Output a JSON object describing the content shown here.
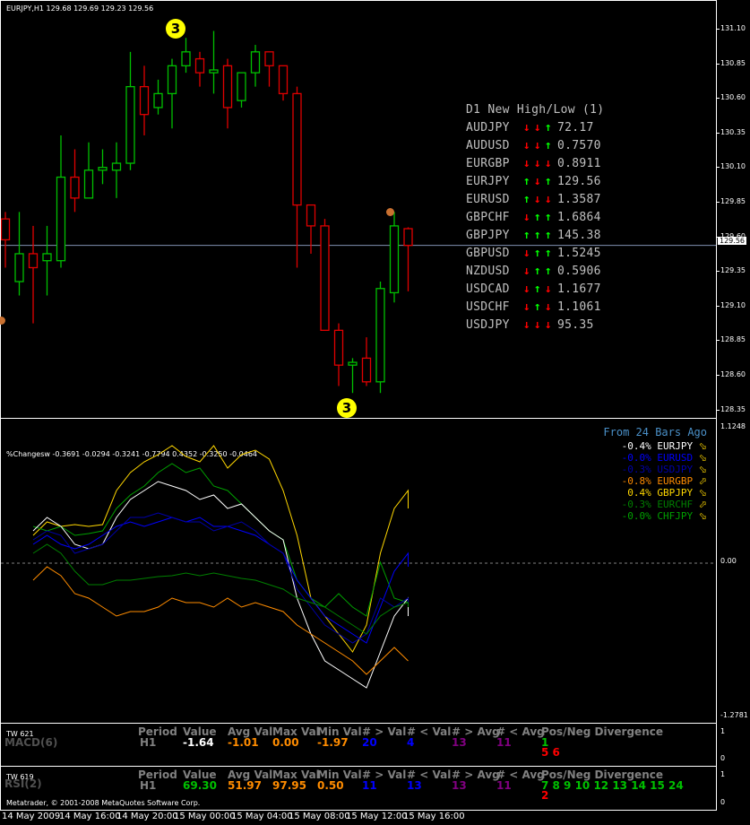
{
  "main": {
    "title": "EURJPY,H1  129.68 129.69 129.23 129.56",
    "price_axis": [
      "131.10",
      "130.85",
      "130.60",
      "130.35",
      "130.10",
      "129.85",
      "129.60",
      "129.35",
      "129.10",
      "128.85",
      "128.60",
      "128.35"
    ],
    "current_price": "129.56",
    "badge_top": "3",
    "badge_bottom": "3",
    "table": {
      "title": "D1 New High/Low (1)",
      "rows": [
        {
          "symbol": "AUDJPY",
          "a1": "↓",
          "a2": "↓",
          "a3": "↑",
          "c1": "#ff0000",
          "c2": "#ff0000",
          "c3": "#00ff00",
          "value": "72.17"
        },
        {
          "symbol": "AUDUSD",
          "a1": "↓",
          "a2": "↓",
          "a3": "↑",
          "c1": "#ff0000",
          "c2": "#ff0000",
          "c3": "#00ff00",
          "value": "0.7570"
        },
        {
          "symbol": "EURGBP",
          "a1": "↓",
          "a2": "↓",
          "a3": "↓",
          "c1": "#ff0000",
          "c2": "#ff0000",
          "c3": "#ff0000",
          "value": "0.8911"
        },
        {
          "symbol": "EURJPY",
          "a1": "↑",
          "a2": "↓",
          "a3": "↑",
          "c1": "#00ff00",
          "c2": "#ff0000",
          "c3": "#00ff00",
          "value": "129.56"
        },
        {
          "symbol": "EURUSD",
          "a1": "↑",
          "a2": "↓",
          "a3": "↓",
          "c1": "#00ff00",
          "c2": "#ff0000",
          "c3": "#ff0000",
          "value": "1.3587"
        },
        {
          "symbol": "GBPCHF",
          "a1": "↓",
          "a2": "↑",
          "a3": "↑",
          "c1": "#ff0000",
          "c2": "#00ff00",
          "c3": "#00ff00",
          "value": "1.6864"
        },
        {
          "symbol": "GBPJPY",
          "a1": "↑",
          "a2": "↑",
          "a3": "↑",
          "c1": "#00ff00",
          "c2": "#00ff00",
          "c3": "#00ff00",
          "value": "145.38"
        },
        {
          "symbol": "GBPUSD",
          "a1": "↓",
          "a2": "↑",
          "a3": "↑",
          "c1": "#ff0000",
          "c2": "#00ff00",
          "c3": "#00ff00",
          "value": "1.5245"
        },
        {
          "symbol": "NZDUSD",
          "a1": "↓",
          "a2": "↑",
          "a3": "↑",
          "c1": "#ff0000",
          "c2": "#00ff00",
          "c3": "#00ff00",
          "value": "0.5906"
        },
        {
          "symbol": "USDCAD",
          "a1": "↓",
          "a2": "↑",
          "a3": "↓",
          "c1": "#ff0000",
          "c2": "#00ff00",
          "c3": "#ff0000",
          "value": "1.1677"
        },
        {
          "symbol": "USDCHF",
          "a1": "↓",
          "a2": "↑",
          "a3": "↓",
          "c1": "#ff0000",
          "c2": "#00ff00",
          "c3": "#ff0000",
          "value": "1.1061"
        },
        {
          "symbol": "USDJPY",
          "a1": "↓",
          "a2": "↓",
          "a3": "↓",
          "c1": "#ff0000",
          "c2": "#ff0000",
          "c3": "#ff0000",
          "value": "95.35"
        }
      ]
    }
  },
  "changes": {
    "title": "%Changesw -0.3691 -0.0294 -0.3241 -0.7794 0.4352 -0.3250 -0.0464",
    "axis_top": "1.1248",
    "axis_zero": "0.00",
    "axis_bottom": "-1.2781",
    "legend_title": "From 24 Bars Ago",
    "legend": [
      {
        "value": "-0.4%",
        "symbol": "EURJPY",
        "arrow": "⬂",
        "color": "#ffffff"
      },
      {
        "value": "-0.0%",
        "symbol": "EURUSD",
        "arrow": "⬂",
        "color": "#0000ff"
      },
      {
        "value": "-0.3%",
        "symbol": "USDJPY",
        "arrow": "⬂",
        "color": "#0000aa"
      },
      {
        "value": "-0.8%",
        "symbol": "EURGBP",
        "arrow": "⬀",
        "color": "#ff8c00"
      },
      {
        "value": "0.4%",
        "symbol": "GBPJPY",
        "arrow": "⬂",
        "color": "#ffd700"
      },
      {
        "value": "-0.3%",
        "symbol": "EURCHF",
        "arrow": "⬀",
        "color": "#008000"
      },
      {
        "value": "-0.0%",
        "symbol": "CHFJPY",
        "arrow": "⬂",
        "color": "#00a000"
      }
    ]
  },
  "macd": {
    "tag": "TW 621",
    "name": "MACD(6)",
    "headers": [
      "Period",
      "Value",
      "Avg Val",
      "Max Val",
      "Min Val",
      "# > Val",
      "# < Val",
      "# > Avg",
      "# < Avg",
      "Pos/Neg Divergence"
    ],
    "values": [
      "H1",
      "-1.64",
      "-1.01",
      "0.00",
      "-1.97",
      "20",
      "4",
      "13",
      "11",
      "1"
    ],
    "value_colors": [
      "#808080",
      "#ffffff",
      "#ff8c00",
      "#ff8c00",
      "#ff8c00",
      "#0000ff",
      "#0000ff",
      "#800080",
      "#800080",
      "#00c000"
    ],
    "divergence_neg": "5 6",
    "axis": [
      "1",
      "0"
    ]
  },
  "rsi": {
    "tag": "TW 619",
    "name": "RSI(2)",
    "headers": [
      "Period",
      "Value",
      "Avg Val",
      "Max Val",
      "Min Val",
      "# > Val",
      "# < Val",
      "# > Avg",
      "# < Avg",
      "Pos/Neg Divergence"
    ],
    "values": [
      "H1",
      "69.30",
      "51.97",
      "97.95",
      "0.50",
      "11",
      "13",
      "13",
      "11",
      "7 8 9 10 12 13 14 15 24"
    ],
    "value_colors": [
      "#808080",
      "#00c000",
      "#ff8c00",
      "#ff8c00",
      "#ff8c00",
      "#0000ff",
      "#0000ff",
      "#800080",
      "#800080",
      "#00c000"
    ],
    "divergence_neg": "2",
    "copyright": "Metatrader, © 2001-2008 MetaQuotes Software Corp.",
    "axis": [
      "1",
      "0"
    ]
  },
  "time_axis": [
    "14 May 2009",
    "14 May 16:00",
    "14 May 20:00",
    "15 May 00:00",
    "15 May 04:00",
    "15 May 08:00",
    "15 May 12:00",
    "15 May 16:00"
  ],
  "chart_data": {
    "type": "candlestick",
    "price_range": [
      128.28,
      131.2
    ],
    "current_price": 129.56,
    "candles": [
      {
        "o": 129.75,
        "h": 129.8,
        "l": 129.4,
        "c": 129.6
      },
      {
        "o": 129.3,
        "h": 129.8,
        "l": 129.2,
        "c": 129.5
      },
      {
        "o": 129.5,
        "h": 129.7,
        "l": 129.0,
        "c": 129.4
      },
      {
        "o": 129.45,
        "h": 129.7,
        "l": 129.2,
        "c": 129.5
      },
      {
        "o": 129.45,
        "h": 130.35,
        "l": 129.4,
        "c": 130.05
      },
      {
        "o": 130.05,
        "h": 130.25,
        "l": 129.8,
        "c": 129.9
      },
      {
        "o": 129.9,
        "h": 130.3,
        "l": 129.9,
        "c": 130.1
      },
      {
        "o": 130.1,
        "h": 130.25,
        "l": 130.0,
        "c": 130.12
      },
      {
        "o": 130.1,
        "h": 130.3,
        "l": 129.9,
        "c": 130.15
      },
      {
        "o": 130.15,
        "h": 130.95,
        "l": 130.1,
        "c": 130.7
      },
      {
        "o": 130.7,
        "h": 130.85,
        "l": 130.35,
        "c": 130.5
      },
      {
        "o": 130.55,
        "h": 130.75,
        "l": 130.5,
        "c": 130.65
      },
      {
        "o": 130.65,
        "h": 130.9,
        "l": 130.4,
        "c": 130.85
      },
      {
        "o": 130.85,
        "h": 131.05,
        "l": 130.8,
        "c": 130.95
      },
      {
        "o": 130.9,
        "h": 130.95,
        "l": 130.7,
        "c": 130.8
      },
      {
        "o": 130.8,
        "h": 131.1,
        "l": 130.65,
        "c": 130.82
      },
      {
        "o": 130.85,
        "h": 130.9,
        "l": 130.4,
        "c": 130.55
      },
      {
        "o": 130.6,
        "h": 130.8,
        "l": 130.55,
        "c": 130.8
      },
      {
        "o": 130.8,
        "h": 131.0,
        "l": 130.7,
        "c": 130.95
      },
      {
        "o": 130.95,
        "h": 130.95,
        "l": 130.7,
        "c": 130.85
      },
      {
        "o": 130.85,
        "h": 130.85,
        "l": 130.6,
        "c": 130.65
      },
      {
        "o": 130.65,
        "h": 130.7,
        "l": 129.4,
        "c": 129.85
      },
      {
        "o": 129.85,
        "h": 129.85,
        "l": 129.5,
        "c": 129.7
      },
      {
        "o": 129.7,
        "h": 129.75,
        "l": 128.95,
        "c": 128.95
      },
      {
        "o": 128.95,
        "h": 129.0,
        "l": 128.55,
        "c": 128.7
      },
      {
        "o": 128.7,
        "h": 128.75,
        "l": 128.5,
        "c": 128.72
      },
      {
        "o": 128.75,
        "h": 128.9,
        "l": 128.55,
        "c": 128.58
      },
      {
        "o": 128.58,
        "h": 129.3,
        "l": 128.5,
        "c": 129.25
      },
      {
        "o": 129.22,
        "h": 129.8,
        "l": 129.15,
        "c": 129.7
      },
      {
        "o": 129.68,
        "h": 129.69,
        "l": 129.23,
        "c": 129.56
      }
    ]
  }
}
